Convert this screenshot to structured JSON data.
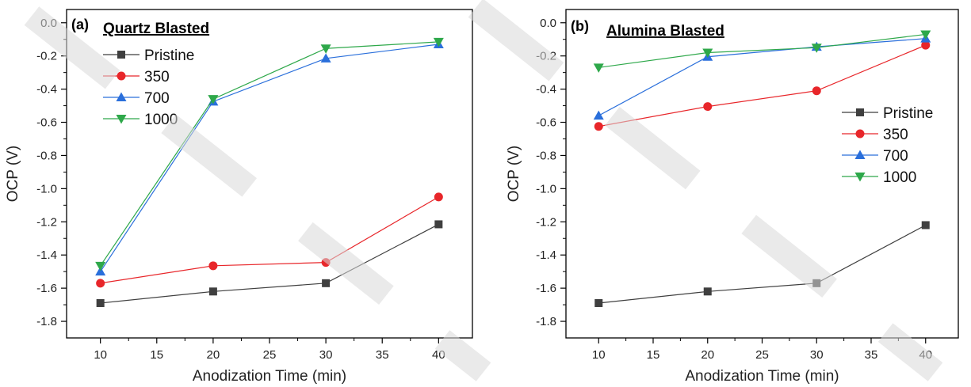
{
  "chart_data": [
    {
      "type": "line",
      "panel_label": "(a)",
      "title": "Quartz Blasted",
      "xlabel": "Anodization Time (min)",
      "ylabel": "OCP (V)",
      "xlim": [
        7,
        43
      ],
      "ylim": [
        -1.9,
        0.08
      ],
      "xticks": [
        10,
        15,
        20,
        25,
        30,
        35,
        40
      ],
      "yticks": [
        0.0,
        -0.2,
        -0.4,
        -0.6,
        -0.8,
        -1.0,
        -1.2,
        -1.4,
        -1.6,
        -1.8
      ],
      "ytick_labels": [
        "0.0",
        "-0.2",
        "-0.4",
        "-0.6",
        "-0.8",
        "-1.0",
        "-1.2",
        "-1.4",
        "-1.6",
        "-1.8"
      ],
      "legend_position": "top-left",
      "x": [
        10,
        20,
        30,
        40
      ],
      "series": [
        {
          "name": "Pristine",
          "color": "#3f3f3f",
          "marker": "square",
          "values": [
            -1.69,
            -1.62,
            -1.57,
            -1.215
          ]
        },
        {
          "name": "350",
          "color": "#e8262a",
          "marker": "circle",
          "values": [
            -1.57,
            -1.465,
            -1.445,
            -1.05
          ]
        },
        {
          "name": "700",
          "color": "#2a6fdb",
          "marker": "triangle-up",
          "values": [
            -1.5,
            -0.475,
            -0.215,
            -0.13
          ]
        },
        {
          "name": "1000",
          "color": "#2ea84a",
          "marker": "triangle-down",
          "values": [
            -1.465,
            -0.46,
            -0.155,
            -0.115
          ]
        }
      ]
    },
    {
      "type": "line",
      "panel_label": "(b)",
      "title": "Alumina Blasted",
      "xlabel": "Anodization Time (min)",
      "ylabel": "OCP (V)",
      "xlim": [
        7,
        43
      ],
      "ylim": [
        -1.9,
        0.08
      ],
      "xticks": [
        10,
        15,
        20,
        25,
        30,
        35,
        40
      ],
      "yticks": [
        0.0,
        -0.2,
        -0.4,
        -0.6,
        -0.8,
        -1.0,
        -1.2,
        -1.4,
        -1.6,
        -1.8
      ],
      "ytick_labels": [
        "0.0",
        "-0.2",
        "-0.4",
        "-0.6",
        "-0.8",
        "-1.0",
        "-1.2",
        "-1.4",
        "-1.6",
        "-1.8"
      ],
      "legend_position": "right",
      "x": [
        10,
        20,
        30,
        40
      ],
      "series": [
        {
          "name": "Pristine",
          "color": "#3f3f3f",
          "marker": "square",
          "values": [
            -1.69,
            -1.62,
            -1.57,
            -1.22
          ]
        },
        {
          "name": "350",
          "color": "#e8262a",
          "marker": "circle",
          "values": [
            -0.625,
            -0.505,
            -0.41,
            -0.135
          ]
        },
        {
          "name": "700",
          "color": "#2a6fdb",
          "marker": "triangle-up",
          "values": [
            -0.56,
            -0.205,
            -0.145,
            -0.095
          ]
        },
        {
          "name": "1000",
          "color": "#2ea84a",
          "marker": "triangle-down",
          "values": [
            -0.27,
            -0.18,
            -0.15,
            -0.07
          ]
        }
      ]
    }
  ]
}
